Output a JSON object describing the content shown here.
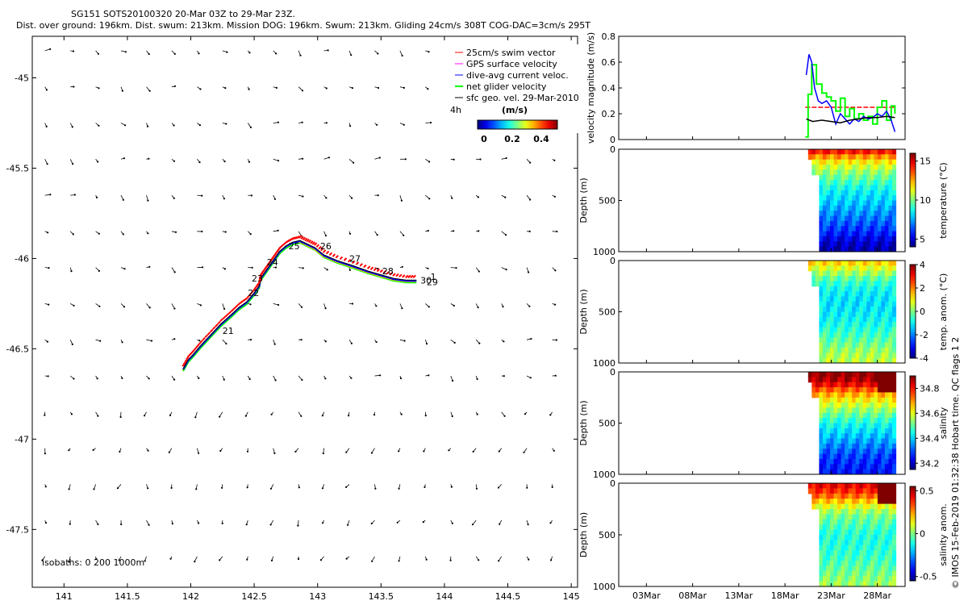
{
  "header": {
    "line1": "SG151 SOTS20100320 20-Mar 03Z to 29-Mar 23Z.",
    "line2": "Dist. over ground: 196km. Dist. swum: 213km. Mission DOG: 196km. Swum: 213km. Gliding 24cm/s 308T COG-DAC=3cm/s 295T"
  },
  "colors": {
    "swim": "#ff0000",
    "gps": "#ff00ff",
    "dac": "#0000ff",
    "net": "#00ff00",
    "geo": "#000000"
  },
  "chart_data": [
    {
      "type": "line",
      "name": "track-map",
      "xlabel": "",
      "ylabel": "",
      "xlim": [
        140.75,
        145.05
      ],
      "ylim": [
        -47.82,
        -44.77
      ],
      "xticks": [
        "141",
        "141.5",
        "142",
        "142.5",
        "143",
        "143.5",
        "144",
        "144.5",
        "145"
      ],
      "yticks": [
        "-45",
        "-45.5",
        "-46",
        "-46.5",
        "-47",
        "-47.5"
      ],
      "legend": [
        {
          "label": "25cm/s swim vector",
          "color": "#ff0000"
        },
        {
          "label": "GPS surface velocity",
          "color": "#ff00ff"
        },
        {
          "label": "dive-avg current veloc.",
          "color": "#0000ff"
        },
        {
          "label": "net glider velocity",
          "color": "#00ff00"
        },
        {
          "label": "sfc geo. vel. 29-Mar-2010",
          "color": "#000000"
        }
      ],
      "colorbar": {
        "label": "(m/s)",
        "ticks": [
          "0",
          "0.2",
          "0.4"
        ],
        "note": "4h"
      },
      "isobath_text": "isobaths: 0   200  1000m",
      "track": {
        "lon": [
          141.94,
          141.98,
          142.02,
          142.08,
          142.16,
          142.24,
          142.32,
          142.38,
          142.44,
          142.5,
          142.54,
          142.55,
          142.57,
          142.6,
          142.63,
          142.66,
          142.7,
          142.75,
          142.8,
          142.86,
          142.92,
          142.98,
          143.05,
          143.15,
          143.28,
          143.4,
          143.5,
          143.6,
          143.7,
          143.78
        ],
        "lat": [
          -46.61,
          -46.56,
          -46.53,
          -46.48,
          -46.42,
          -46.36,
          -46.31,
          -46.27,
          -46.24,
          -46.19,
          -46.15,
          -46.11,
          -46.09,
          -46.06,
          -46.03,
          -46.0,
          -45.96,
          -45.93,
          -45.91,
          -45.9,
          -45.92,
          -45.94,
          -45.98,
          -46.01,
          -46.04,
          -46.07,
          -46.09,
          -46.11,
          -46.12,
          -46.12
        ]
      },
      "day_labels": [
        {
          "text": "21",
          "lon": 142.25,
          "lat": -46.4
        },
        {
          "text": "22",
          "lon": 142.45,
          "lat": -46.19
        },
        {
          "text": "23",
          "lon": 142.48,
          "lat": -46.11
        },
        {
          "text": "24",
          "lon": 142.6,
          "lat": -46.02
        },
        {
          "text": "25",
          "lon": 142.77,
          "lat": -45.93
        },
        {
          "text": "26",
          "lon": 143.02,
          "lat": -45.93
        },
        {
          "text": "27",
          "lon": 143.25,
          "lat": -46.0
        },
        {
          "text": "28",
          "lon": 143.51,
          "lat": -46.07
        },
        {
          "text": "29",
          "lon": 143.86,
          "lat": -46.13
        },
        {
          "text": "30",
          "lon": 143.81,
          "lat": -46.12
        },
        {
          "text": "1",
          "lon": 143.89,
          "lat": -46.1
        }
      ]
    },
    {
      "type": "line",
      "name": "velocity-timeseries",
      "ylabel": "velocity magnitude (m/s)",
      "xlim": [
        0,
        31
      ],
      "ylim": [
        0,
        0.8
      ],
      "yticks": [
        "0",
        "0.2",
        "0.4",
        "0.6",
        "0.8"
      ],
      "series": [
        {
          "name": "swim",
          "color": "#ff0000",
          "x": [
            20.2,
            29.9
          ],
          "values": [
            0.25,
            0.25
          ]
        },
        {
          "name": "net glider velocity",
          "color": "#00ff00",
          "x": [
            20.2,
            20.5,
            20.9,
            21.4,
            22.0,
            22.5,
            23.0,
            23.5,
            24.0,
            24.5,
            25.0,
            25.5,
            26.0,
            26.5,
            27.0,
            27.5,
            28.0,
            28.5,
            29.0,
            29.5,
            29.9
          ],
          "values": [
            0.02,
            0.35,
            0.58,
            0.43,
            0.36,
            0.33,
            0.3,
            0.22,
            0.32,
            0.18,
            0.24,
            0.16,
            0.2,
            0.15,
            0.18,
            0.12,
            0.25,
            0.3,
            0.15,
            0.26,
            0.2
          ]
        },
        {
          "name": "dive-avg current veloc.",
          "color": "#0000ff",
          "x": [
            20.3,
            20.6,
            20.9,
            21.2,
            21.6,
            22.0,
            22.5,
            23.0,
            23.5,
            24.0,
            24.5,
            25.0,
            25.5,
            26.0,
            26.5,
            27.0,
            27.5,
            28.0,
            28.5,
            29.0,
            29.5,
            29.9
          ],
          "values": [
            0.5,
            0.66,
            0.6,
            0.4,
            0.3,
            0.28,
            0.3,
            0.25,
            0.12,
            0.2,
            0.16,
            0.12,
            0.16,
            0.14,
            0.18,
            0.16,
            0.17,
            0.2,
            0.18,
            0.22,
            0.15,
            0.06
          ]
        },
        {
          "name": "sfc geo. vel.",
          "color": "#000000",
          "x": [
            20.3,
            21.0,
            22.0,
            23.0,
            24.0,
            25.0,
            26.0,
            27.0,
            28.0,
            29.0,
            29.9
          ],
          "values": [
            0.16,
            0.14,
            0.15,
            0.14,
            0.13,
            0.15,
            0.16,
            0.17,
            0.17,
            0.18,
            0.17
          ]
        }
      ]
    },
    {
      "type": "heatmap",
      "name": "temperature-section",
      "ylabel": "Depth (m)",
      "clabel": "temperature (°C)",
      "ylim": [
        0,
        1000
      ],
      "yticks": [
        "0",
        "500",
        "1000"
      ],
      "cticks": [
        "5",
        "10",
        "15"
      ],
      "crange": [
        4,
        16
      ],
      "profile_depth": [
        0,
        100,
        200,
        300,
        400,
        500,
        600,
        700,
        800,
        900,
        1000
      ],
      "profile": [
        15,
        12,
        10.5,
        9.5,
        8.5,
        8,
        7.4,
        6.7,
        6,
        5,
        4.5
      ]
    },
    {
      "type": "heatmap",
      "name": "temperature-anomaly-section",
      "ylabel": "Depth (m)",
      "clabel": "temp. anom. (°C)",
      "ylim": [
        0,
        1000
      ],
      "yticks": [
        "0",
        "500",
        "1000"
      ],
      "cticks": [
        "-4",
        "-2",
        "0",
        "2",
        "4"
      ],
      "crange": [
        -4,
        4
      ],
      "profile_depth": [
        0,
        100,
        200,
        300,
        400,
        500,
        600,
        700,
        800,
        900,
        1000
      ],
      "profile": [
        1.5,
        0.5,
        -0.5,
        -1,
        -1.2,
        -1.1,
        -0.9,
        -0.6,
        -0.2,
        0.3,
        0.5
      ]
    },
    {
      "type": "heatmap",
      "name": "salinity-section",
      "ylabel": "Depth (m)",
      "clabel": "salinity",
      "ylim": [
        0,
        1000
      ],
      "yticks": [
        "0",
        "500",
        "1000"
      ],
      "cticks": [
        "34.2",
        "34.4",
        "34.6",
        "34.8"
      ],
      "crange": [
        34.15,
        34.9
      ],
      "profile_depth": [
        0,
        100,
        200,
        300,
        400,
        500,
        600,
        700,
        800,
        900,
        1000
      ],
      "profile": [
        34.9,
        34.85,
        34.7,
        34.6,
        34.52,
        34.45,
        34.4,
        34.35,
        34.3,
        34.27,
        34.25
      ]
    },
    {
      "type": "heatmap",
      "name": "salinity-anomaly-section",
      "ylabel": "Depth (m)",
      "clabel": "salinity anom.",
      "ylim": [
        0,
        1000
      ],
      "yticks": [
        "0",
        "500",
        "1000"
      ],
      "cticks": [
        "-0.5",
        "0",
        "0.5"
      ],
      "crange": [
        -0.55,
        0.55
      ],
      "profile_depth": [
        0,
        100,
        200,
        300,
        400,
        500,
        600,
        700,
        800,
        900,
        1000
      ],
      "profile": [
        0.45,
        0.35,
        0.15,
        0,
        -0.05,
        -0.1,
        -0.1,
        -0.08,
        -0.04,
        0,
        0.04
      ]
    }
  ],
  "time_axis": {
    "xlim": [
      0,
      31
    ],
    "ticks": [
      {
        "label": "03Mar",
        "day": 3
      },
      {
        "label": "08Mar",
        "day": 8
      },
      {
        "label": "13Mar",
        "day": 13
      },
      {
        "label": "18Mar",
        "day": 18
      },
      {
        "label": "23Mar",
        "day": 23
      },
      {
        "label": "28Mar",
        "day": 28
      }
    ],
    "data_start": 20.5,
    "data_end": 30
  },
  "footer_note": "© IMOS 15-Feb-2019 01:32:38 Hobart time. QC flags 1  2"
}
